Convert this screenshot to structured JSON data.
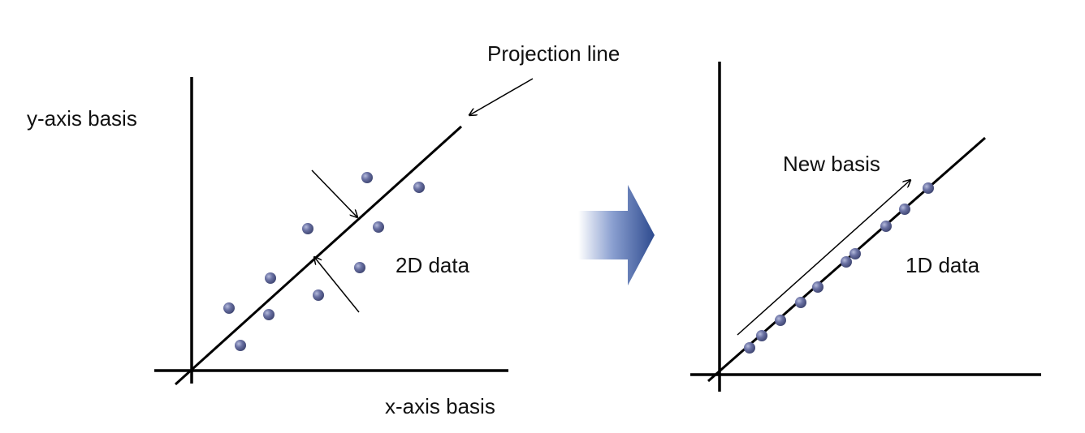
{
  "left_panel": {
    "y_axis_label": "y-axis basis",
    "x_axis_label": "x-axis basis",
    "projection_label": "Projection line",
    "data_label": "2D data"
  },
  "right_panel": {
    "new_basis_label": "New basis",
    "data_label": "1D data"
  },
  "colors": {
    "point": "#5a6293",
    "point_edge": "#3d4470",
    "arrow_dark": "#3a5290",
    "arrow_light": "#ffffff",
    "line": "#000000"
  }
}
